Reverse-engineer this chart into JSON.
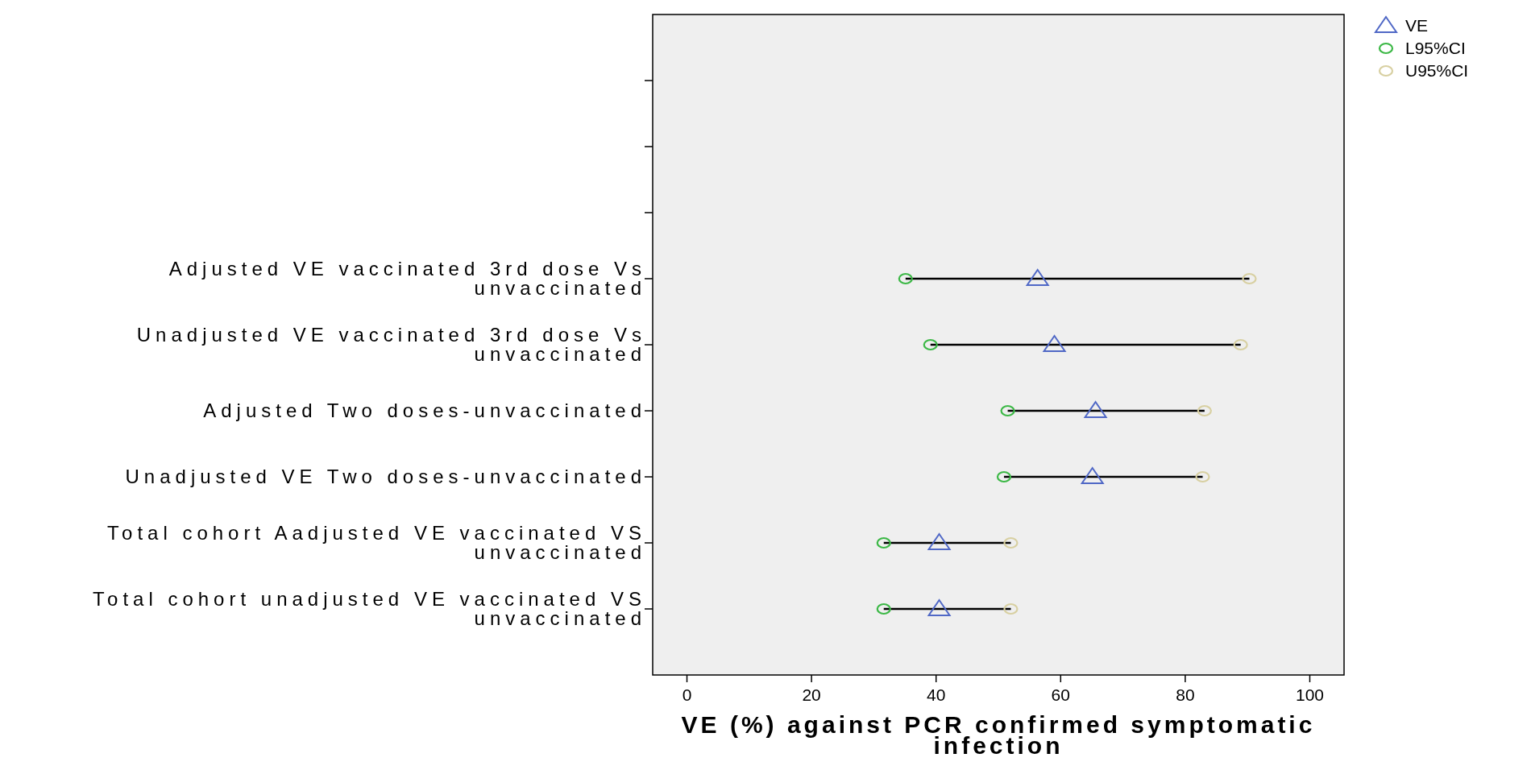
{
  "chart_data": {
    "type": "scatter",
    "orientation": "horizontal",
    "xlabel": "VE (%) against PCR confirmed symptomatic infection",
    "categories": [
      null,
      null,
      null,
      "Adjusted VE vaccinated 3rd dose Vs unvaccinated",
      "Unadjusted VE vaccinated 3rd dose Vs unvaccinated",
      "Adjusted Two doses-unvaccinated",
      "Unadjusted VE Two doses-unvaccinated",
      "Total cohort Aadjusted VE vaccinated VS unvaccinated",
      "Total cohort unadjusted VE vaccinated VS unvaccinated"
    ],
    "xlim": [
      -5.5,
      105.5
    ],
    "xticks": [
      0,
      20,
      40,
      60,
      80,
      100
    ],
    "grid": false,
    "legend": "top right",
    "series": [
      {
        "name": "VE",
        "color": "#5068c6",
        "marker": "triangle",
        "values": [
          null,
          null,
          null,
          56.3,
          59.0,
          65.6,
          65.1,
          40.5,
          40.5
        ]
      },
      {
        "name": "L95%CI",
        "color": "#3cb846",
        "marker": "circle",
        "values": [
          null,
          null,
          null,
          35.1,
          39.1,
          51.5,
          50.9,
          31.6,
          31.6
        ]
      },
      {
        "name": "U95%CI",
        "color": "#d8d0a2",
        "marker": "circle",
        "values": [
          null,
          null,
          null,
          90.3,
          88.9,
          83.1,
          82.8,
          52.0,
          52.0
        ]
      }
    ]
  }
}
